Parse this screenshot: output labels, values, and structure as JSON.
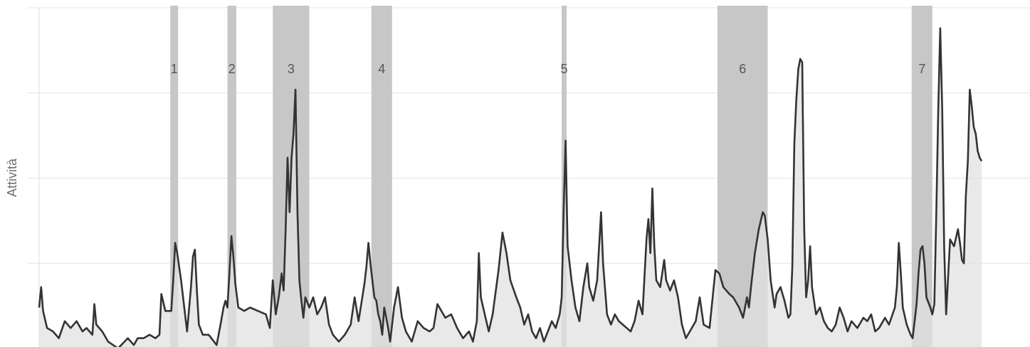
{
  "chart_data": {
    "type": "area",
    "title": "",
    "xlabel": "",
    "ylabel": "Attività",
    "xlim": [
      0,
      1000
    ],
    "ylim": [
      0,
      100
    ],
    "grid": true,
    "y_gridlines": [
      25,
      50,
      75,
      100
    ],
    "colors": {
      "line": "#333333",
      "fill": "#e2e2e2",
      "band": "#c7c7c7",
      "grid": "#e4e4e4",
      "vline": "#dedede"
    },
    "bands": [
      {
        "label": "1",
        "start": 133,
        "end": 141
      },
      {
        "label": "2",
        "start": 191,
        "end": 200
      },
      {
        "label": "3",
        "start": 237,
        "end": 274
      },
      {
        "label": "4",
        "start": 337,
        "end": 358
      },
      {
        "label": "5",
        "start": 530,
        "end": 535
      },
      {
        "label": "6",
        "start": 688,
        "end": 739
      },
      {
        "label": "7",
        "start": 885,
        "end": 906
      }
    ],
    "series": [
      {
        "values": [
          [
            0,
            12
          ],
          [
            2,
            18
          ],
          [
            4,
            11
          ],
          [
            8,
            6
          ],
          [
            14,
            5
          ],
          [
            20,
            3
          ],
          [
            26,
            8
          ],
          [
            32,
            6
          ],
          [
            38,
            8
          ],
          [
            44,
            5
          ],
          [
            48,
            6
          ],
          [
            54,
            4
          ],
          [
            56,
            13
          ],
          [
            58,
            7
          ],
          [
            64,
            5
          ],
          [
            70,
            2
          ],
          [
            80,
            0
          ],
          [
            90,
            3
          ],
          [
            96,
            1
          ],
          [
            100,
            3
          ],
          [
            106,
            3
          ],
          [
            112,
            4
          ],
          [
            118,
            3
          ],
          [
            122,
            4
          ],
          [
            124,
            16
          ],
          [
            128,
            11
          ],
          [
            132,
            11
          ],
          [
            134,
            11
          ],
          [
            136,
            20
          ],
          [
            138,
            31
          ],
          [
            140,
            28
          ],
          [
            144,
            20
          ],
          [
            148,
            10
          ],
          [
            150,
            5
          ],
          [
            154,
            18
          ],
          [
            156,
            27
          ],
          [
            158,
            29
          ],
          [
            160,
            17
          ],
          [
            162,
            7
          ],
          [
            166,
            4
          ],
          [
            172,
            4
          ],
          [
            180,
            1
          ],
          [
            184,
            7
          ],
          [
            187,
            12
          ],
          [
            189,
            14
          ],
          [
            191,
            12
          ],
          [
            193,
            22
          ],
          [
            195,
            33
          ],
          [
            197,
            27
          ],
          [
            199,
            19
          ],
          [
            202,
            12
          ],
          [
            208,
            11
          ],
          [
            214,
            12
          ],
          [
            222,
            11
          ],
          [
            230,
            10
          ],
          [
            234,
            6
          ],
          [
            237,
            20
          ],
          [
            240,
            10
          ],
          [
            243,
            15
          ],
          [
            246,
            22
          ],
          [
            248,
            17
          ],
          [
            250,
            35
          ],
          [
            252,
            56
          ],
          [
            254,
            40
          ],
          [
            256,
            56
          ],
          [
            258,
            63
          ],
          [
            260,
            76
          ],
          [
            262,
            40
          ],
          [
            264,
            20
          ],
          [
            266,
            14
          ],
          [
            268,
            9
          ],
          [
            270,
            15
          ],
          [
            274,
            12
          ],
          [
            278,
            15
          ],
          [
            282,
            10
          ],
          [
            286,
            12
          ],
          [
            290,
            15
          ],
          [
            294,
            7
          ],
          [
            298,
            4
          ],
          [
            304,
            2
          ],
          [
            310,
            4
          ],
          [
            316,
            7
          ],
          [
            320,
            15
          ],
          [
            324,
            8
          ],
          [
            330,
            19
          ],
          [
            332,
            24
          ],
          [
            334,
            31
          ],
          [
            336,
            25
          ],
          [
            338,
            20
          ],
          [
            340,
            15
          ],
          [
            342,
            14
          ],
          [
            344,
            10
          ],
          [
            346,
            8
          ],
          [
            348,
            4
          ],
          [
            350,
            12
          ],
          [
            354,
            6
          ],
          [
            356,
            2
          ],
          [
            360,
            12
          ],
          [
            364,
            18
          ],
          [
            368,
            9
          ],
          [
            372,
            5
          ],
          [
            378,
            2
          ],
          [
            384,
            8
          ],
          [
            390,
            6
          ],
          [
            396,
            5
          ],
          [
            400,
            6
          ],
          [
            404,
            13
          ],
          [
            408,
            11
          ],
          [
            412,
            9
          ],
          [
            418,
            10
          ],
          [
            424,
            6
          ],
          [
            430,
            3
          ],
          [
            436,
            5
          ],
          [
            440,
            2
          ],
          [
            444,
            8
          ],
          [
            446,
            28
          ],
          [
            448,
            15
          ],
          [
            452,
            10
          ],
          [
            456,
            5
          ],
          [
            460,
            10
          ],
          [
            466,
            23
          ],
          [
            470,
            34
          ],
          [
            474,
            28
          ],
          [
            478,
            20
          ],
          [
            484,
            15
          ],
          [
            488,
            12
          ],
          [
            492,
            7
          ],
          [
            496,
            10
          ],
          [
            500,
            5
          ],
          [
            504,
            3
          ],
          [
            508,
            6
          ],
          [
            512,
            2
          ],
          [
            516,
            5
          ],
          [
            520,
            8
          ],
          [
            524,
            6
          ],
          [
            528,
            10
          ],
          [
            530,
            15
          ],
          [
            532,
            40
          ],
          [
            534,
            61
          ],
          [
            536,
            30
          ],
          [
            540,
            20
          ],
          [
            544,
            12
          ],
          [
            548,
            8
          ],
          [
            552,
            18
          ],
          [
            556,
            25
          ],
          [
            558,
            18
          ],
          [
            562,
            14
          ],
          [
            566,
            20
          ],
          [
            570,
            40
          ],
          [
            572,
            25
          ],
          [
            576,
            10
          ],
          [
            580,
            7
          ],
          [
            584,
            10
          ],
          [
            588,
            8
          ],
          [
            592,
            7
          ],
          [
            596,
            6
          ],
          [
            600,
            5
          ],
          [
            604,
            8
          ],
          [
            608,
            14
          ],
          [
            612,
            10
          ],
          [
            616,
            32
          ],
          [
            618,
            38
          ],
          [
            620,
            28
          ],
          [
            622,
            47
          ],
          [
            624,
            30
          ],
          [
            626,
            20
          ],
          [
            630,
            18
          ],
          [
            634,
            26
          ],
          [
            636,
            20
          ],
          [
            640,
            17
          ],
          [
            644,
            20
          ],
          [
            648,
            15
          ],
          [
            652,
            7
          ],
          [
            656,
            3
          ],
          [
            660,
            5
          ],
          [
            666,
            8
          ],
          [
            670,
            15
          ],
          [
            674,
            7
          ],
          [
            680,
            6
          ],
          [
            686,
            23
          ],
          [
            690,
            22
          ],
          [
            694,
            18
          ],
          [
            700,
            16
          ],
          [
            704,
            15
          ],
          [
            710,
            12
          ],
          [
            714,
            9
          ],
          [
            718,
            15
          ],
          [
            720,
            12
          ],
          [
            722,
            18
          ],
          [
            726,
            28
          ],
          [
            730,
            35
          ],
          [
            734,
            40
          ],
          [
            736,
            39
          ],
          [
            739,
            32
          ],
          [
            742,
            20
          ],
          [
            746,
            12
          ],
          [
            748,
            16
          ],
          [
            752,
            18
          ],
          [
            756,
            14
          ],
          [
            760,
            9
          ],
          [
            762,
            10
          ],
          [
            764,
            24
          ],
          [
            766,
            60
          ],
          [
            768,
            73
          ],
          [
            770,
            82
          ],
          [
            772,
            85
          ],
          [
            774,
            84
          ],
          [
            776,
            35
          ],
          [
            778,
            15
          ],
          [
            780,
            20
          ],
          [
            782,
            30
          ],
          [
            784,
            18
          ],
          [
            788,
            10
          ],
          [
            792,
            12
          ],
          [
            796,
            8
          ],
          [
            800,
            6
          ],
          [
            804,
            5
          ],
          [
            808,
            7
          ],
          [
            812,
            12
          ],
          [
            816,
            9
          ],
          [
            820,
            5
          ],
          [
            824,
            8
          ],
          [
            830,
            6
          ],
          [
            836,
            9
          ],
          [
            840,
            8
          ],
          [
            844,
            10
          ],
          [
            848,
            5
          ],
          [
            852,
            6
          ],
          [
            858,
            9
          ],
          [
            862,
            7
          ],
          [
            868,
            12
          ],
          [
            870,
            18
          ],
          [
            872,
            31
          ],
          [
            874,
            22
          ],
          [
            876,
            12
          ],
          [
            880,
            7
          ],
          [
            884,
            4
          ],
          [
            886,
            3
          ],
          [
            888,
            8
          ],
          [
            890,
            13
          ],
          [
            892,
            22
          ],
          [
            894,
            29
          ],
          [
            896,
            30
          ],
          [
            898,
            25
          ],
          [
            900,
            15
          ],
          [
            904,
            12
          ],
          [
            906,
            10
          ],
          [
            908,
            13
          ],
          [
            910,
            40
          ],
          [
            912,
            70
          ],
          [
            914,
            94
          ],
          [
            916,
            70
          ],
          [
            918,
            30
          ],
          [
            920,
            10
          ],
          [
            924,
            32
          ],
          [
            928,
            30
          ],
          [
            932,
            35
          ],
          [
            934,
            31
          ],
          [
            936,
            26
          ],
          [
            938,
            25
          ],
          [
            940,
            45
          ],
          [
            942,
            55
          ],
          [
            944,
            76
          ],
          [
            946,
            71
          ],
          [
            948,
            65
          ],
          [
            950,
            63
          ],
          [
            952,
            58
          ],
          [
            954,
            56
          ],
          [
            956,
            55
          ]
        ]
      }
    ]
  }
}
